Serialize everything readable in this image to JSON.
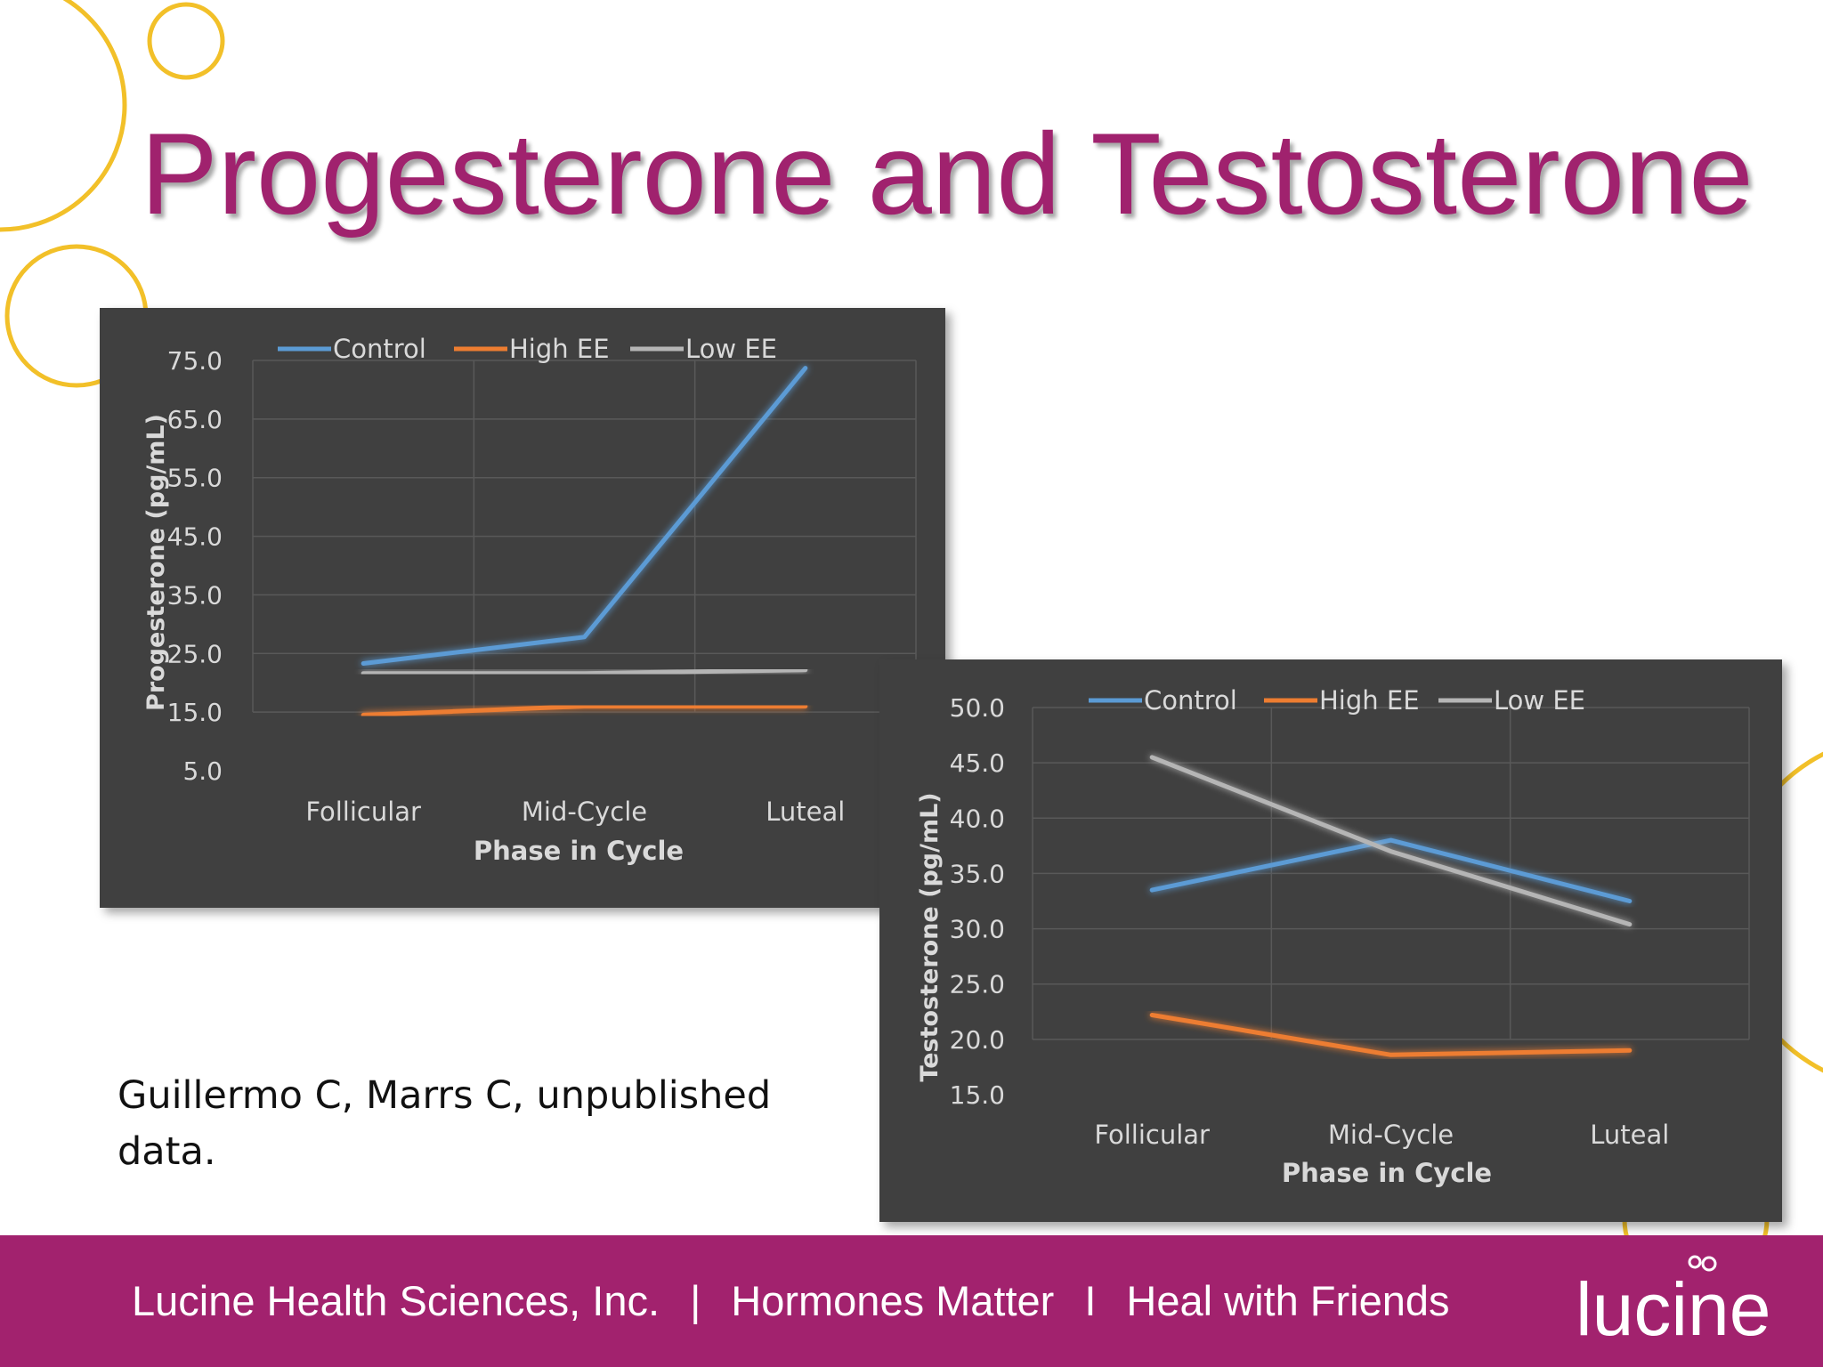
{
  "slide": {
    "title": "Progesterone and Testosterone",
    "citation": "Guillermo C, Marrs C, unpublished data.",
    "footer": {
      "company": "Lucine Health Sciences, Inc.",
      "sep1": "|",
      "tagline1": "Hormones Matter",
      "sep2": "I",
      "tagline2": "Heal with Friends"
    },
    "logo_text": "lucine",
    "colors": {
      "brand": "#a2226e",
      "accent_circles": "#f2c029",
      "chart_bg": "#404040",
      "control": "#5b9bd5",
      "high_ee": "#ed7d31",
      "low_ee": "#b5b5b5"
    }
  },
  "chart_data": [
    {
      "type": "line",
      "categories": [
        "Follicular",
        "Mid-Cycle",
        "Luteal"
      ],
      "series": [
        {
          "name": "Control",
          "values": [
            23.3,
            27.8,
            73.7
          ]
        },
        {
          "name": "High EE",
          "values": [
            14.5,
            16.0,
            16.0
          ]
        },
        {
          "name": "Low EE",
          "values": [
            21.6,
            21.6,
            22.2
          ]
        }
      ],
      "xlabel": "Phase in Cycle",
      "ylabel": "Progesterone (pg/mL)",
      "ylim": [
        5.0,
        75.0
      ],
      "yticks": [
        "75.0",
        "65.0",
        "55.0",
        "45.0",
        "35.0",
        "25.0",
        "15.0",
        "5.0"
      ],
      "grid": true,
      "legend": "top"
    },
    {
      "type": "line",
      "categories": [
        "Follicular",
        "Mid-Cycle",
        "Luteal"
      ],
      "series": [
        {
          "name": "Control",
          "values": [
            33.5,
            38.0,
            32.5
          ]
        },
        {
          "name": "High EE",
          "values": [
            22.2,
            18.6,
            19.0
          ]
        },
        {
          "name": "Low EE",
          "values": [
            45.5,
            37.0,
            30.4
          ]
        }
      ],
      "xlabel": "Phase in Cycle",
      "ylabel": "Testosterone (pg/mL)",
      "ylim": [
        15.0,
        50.0
      ],
      "yticks": [
        "50.0",
        "45.0",
        "40.0",
        "35.0",
        "30.0",
        "25.0",
        "20.0",
        "15.0"
      ],
      "grid": true,
      "legend": "top"
    }
  ]
}
